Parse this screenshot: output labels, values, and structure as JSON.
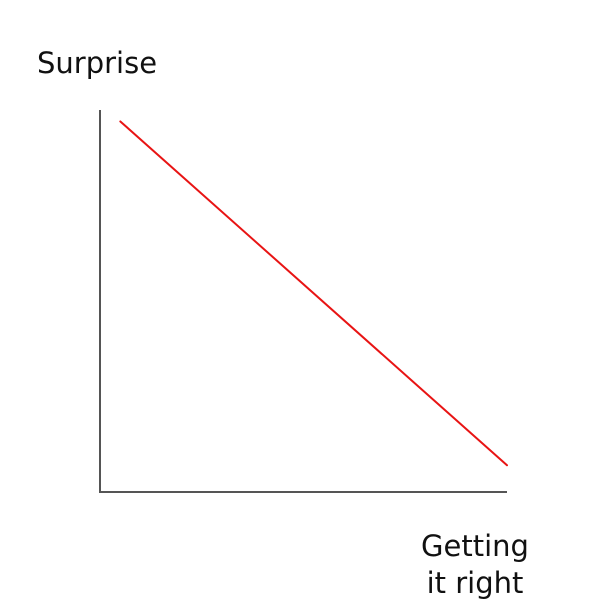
{
  "chart_data": {
    "type": "line",
    "title": "",
    "xlabel": [
      "Getting",
      "it right"
    ],
    "ylabel": "Surprise",
    "xlim": [
      0,
      1
    ],
    "ylim": [
      0,
      1
    ],
    "grid": false,
    "series": [
      {
        "x": [
          0.05,
          1.0
        ],
        "y": [
          0.97,
          0.07
        ],
        "color": "#e81414"
      }
    ],
    "axis_color": "#555555"
  }
}
